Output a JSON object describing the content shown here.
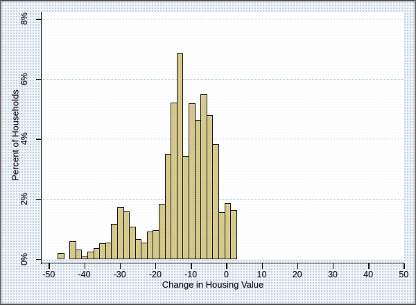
{
  "figure": {
    "type_label": "stata-style histogram figure"
  },
  "chart_data": {
    "type": "bar",
    "subtype": "histogram",
    "title": "",
    "xlabel": "Change in Housing Value",
    "ylabel": "Percent of Households",
    "xlim": [
      -50,
      50
    ],
    "ylim": [
      0,
      8
    ],
    "x_tick_values": [
      -50,
      -40,
      -30,
      -20,
      -10,
      0,
      10,
      20,
      30,
      40,
      50
    ],
    "x_tick_labels": [
      "-50",
      "-40",
      "-30",
      "-20",
      "-10",
      "0",
      "10",
      "20",
      "30",
      "40",
      "50"
    ],
    "y_tick_values": [
      0,
      2,
      4,
      6,
      8
    ],
    "y_tick_labels": [
      "0%",
      "2%",
      "4%",
      "6%",
      "8%"
    ],
    "grid": "horizontal dotted gridlines at 2%, 4%, 6%, 8%; none at 0%",
    "legend": "none",
    "bin_start": -47.5,
    "bin_width": 1.677,
    "heights_pct": [
      0.2,
      0.0,
      0.6,
      0.32,
      0.08,
      0.24,
      0.36,
      0.51,
      0.55,
      1.16,
      1.71,
      1.58,
      1.07,
      0.66,
      0.55,
      0.92,
      0.95,
      1.83,
      3.49,
      5.21,
      6.85,
      3.42,
      5.18,
      4.62,
      5.48,
      4.79,
      3.83,
      1.55,
      1.86,
      1.63
    ],
    "bar_fill_color": "#d6cd8e",
    "bar_border_color": "#141414",
    "gridline_color": "#aed0e2",
    "axis_color": "#101010",
    "plot_background": "#ffffff",
    "outer_background": "#f2f5f7"
  }
}
